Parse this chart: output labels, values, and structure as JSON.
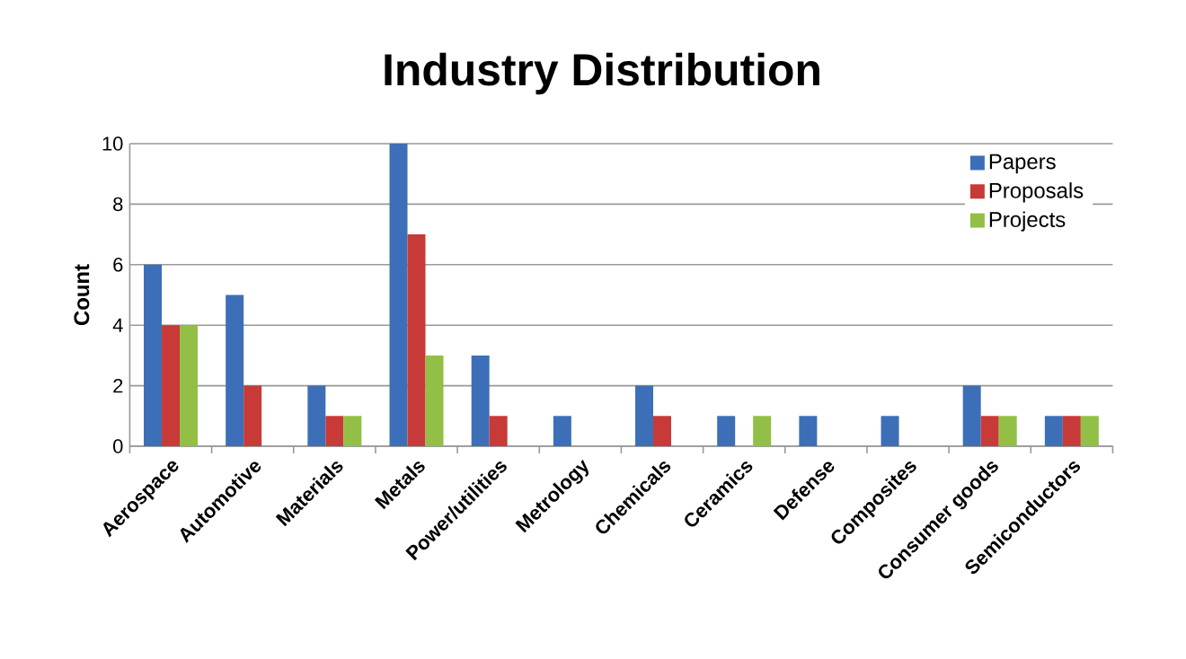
{
  "chart_data": {
    "type": "bar",
    "title": "Industry Distribution",
    "ylabel": "Count",
    "categories": [
      "Aerospace",
      "Automotive",
      "Materials",
      "Metals",
      "Power/utilities",
      "Metrology",
      "Chemicals",
      "Ceramics",
      "Defense",
      "Composites",
      "Consumer goods",
      "Semiconductors"
    ],
    "series": [
      {
        "name": "Papers",
        "color": "#3d6fb8",
        "values": [
          6,
          5,
          2,
          10,
          3,
          1,
          2,
          1,
          1,
          1,
          2,
          1
        ]
      },
      {
        "name": "Proposals",
        "color": "#c83a37",
        "values": [
          4,
          2,
          1,
          7,
          1,
          0,
          1,
          0,
          0,
          0,
          1,
          1
        ]
      },
      {
        "name": "Projects",
        "color": "#92bf45",
        "values": [
          4,
          0,
          1,
          3,
          0,
          0,
          0,
          1,
          0,
          0,
          1,
          1
        ]
      }
    ],
    "ylim": [
      0,
      10
    ],
    "yticks": [
      0,
      2,
      4,
      6,
      8,
      10
    ],
    "grid": "y",
    "legend": "top right"
  }
}
